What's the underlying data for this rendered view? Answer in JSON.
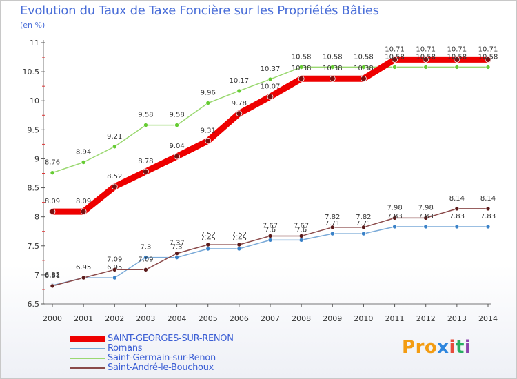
{
  "title": "Evolution du Taux de Taxe Foncière sur les Propriétés Bâties",
  "subtitle": "(en %)",
  "logo": {
    "text": "Proxiti",
    "letters": [
      "P",
      "r",
      "o",
      "x",
      "i",
      "t",
      "i"
    ],
    "colors": [
      "#f39c12",
      "#f39c12",
      "#f39c12",
      "#2e86de",
      "#e74c3c",
      "#27ae60",
      "#8e44ad"
    ]
  },
  "chart_data": {
    "type": "line",
    "title": "Evolution du Taux de Taxe Foncière sur les Propriétés Bâties",
    "ylabel": "(en %)",
    "xlabel": "",
    "ylim": [
      6.5,
      11
    ],
    "yticks": [
      "6.5",
      "7",
      "7.5",
      "8",
      "8.5",
      "9",
      "9.5",
      "10",
      "10.5",
      "11"
    ],
    "categories": [
      "2000",
      "2001",
      "2002",
      "2003",
      "2004",
      "2005",
      "2006",
      "2007",
      "2008",
      "2009",
      "2010",
      "2011",
      "2012",
      "2013",
      "2014"
    ],
    "series": [
      {
        "name": "SAINT-GEORGES-SUR-RENON",
        "color": "#ee0000",
        "marker": "#7a1010",
        "width": 9,
        "values": [
          8.09,
          8.09,
          8.52,
          8.78,
          9.04,
          9.31,
          9.78,
          10.07,
          10.38,
          10.38,
          10.38,
          10.71,
          10.71,
          10.71,
          10.71
        ],
        "labels": [
          "8.09",
          "8.09",
          "8.52",
          "8.78",
          "9.04",
          "9.31",
          "9.78",
          "10.07",
          "10.38",
          "10.38",
          "10.38",
          "10.71",
          "10.71",
          "10.71",
          "10.71"
        ]
      },
      {
        "name": "Romans",
        "color": "#7aaad8",
        "marker": "#3a82c8",
        "width": 1.5,
        "values": [
          6.82,
          6.95,
          6.95,
          7.3,
          7.3,
          7.45,
          7.45,
          7.6,
          7.6,
          7.71,
          7.71,
          7.83,
          7.83,
          7.83,
          7.83
        ],
        "labels": [
          "6.82",
          "6.95",
          "6.95",
          "7.3",
          "7.3",
          "7.45",
          "7.45",
          "7.6",
          "7.6",
          "7.71",
          "7.71",
          "7.83",
          "7.83",
          "7.83",
          "7.83"
        ]
      },
      {
        "name": "Saint-Germain-sur-Renon",
        "color": "#9ad870",
        "marker": "#66cc33",
        "width": 1.5,
        "values": [
          8.76,
          8.94,
          9.21,
          9.58,
          9.58,
          9.96,
          10.17,
          10.37,
          10.58,
          10.58,
          10.58,
          10.58,
          10.58,
          10.58,
          10.58
        ],
        "labels": [
          "8.76",
          "8.94",
          "9.21",
          "9.58",
          "9.58",
          "9.96",
          "10.17",
          "10.37",
          "10.58",
          "10.58",
          "10.58",
          "10.58",
          "10.58",
          "10.58",
          "10.58"
        ]
      },
      {
        "name": "Saint-André-le-Bouchoux",
        "color": "#8a4a4a",
        "marker": "#5a1a1a",
        "width": 1.5,
        "values": [
          6.81,
          6.95,
          7.09,
          7.09,
          7.37,
          7.52,
          7.52,
          7.67,
          7.67,
          7.82,
          7.82,
          7.98,
          7.98,
          8.14,
          8.14
        ],
        "labels": [
          "6.81",
          "6.95",
          "7.09",
          "7.09",
          "7.37",
          "7.52",
          "7.52",
          "7.67",
          "7.67",
          "7.82",
          "7.82",
          "7.98",
          "7.98",
          "8.14",
          "8.14"
        ]
      }
    ]
  }
}
